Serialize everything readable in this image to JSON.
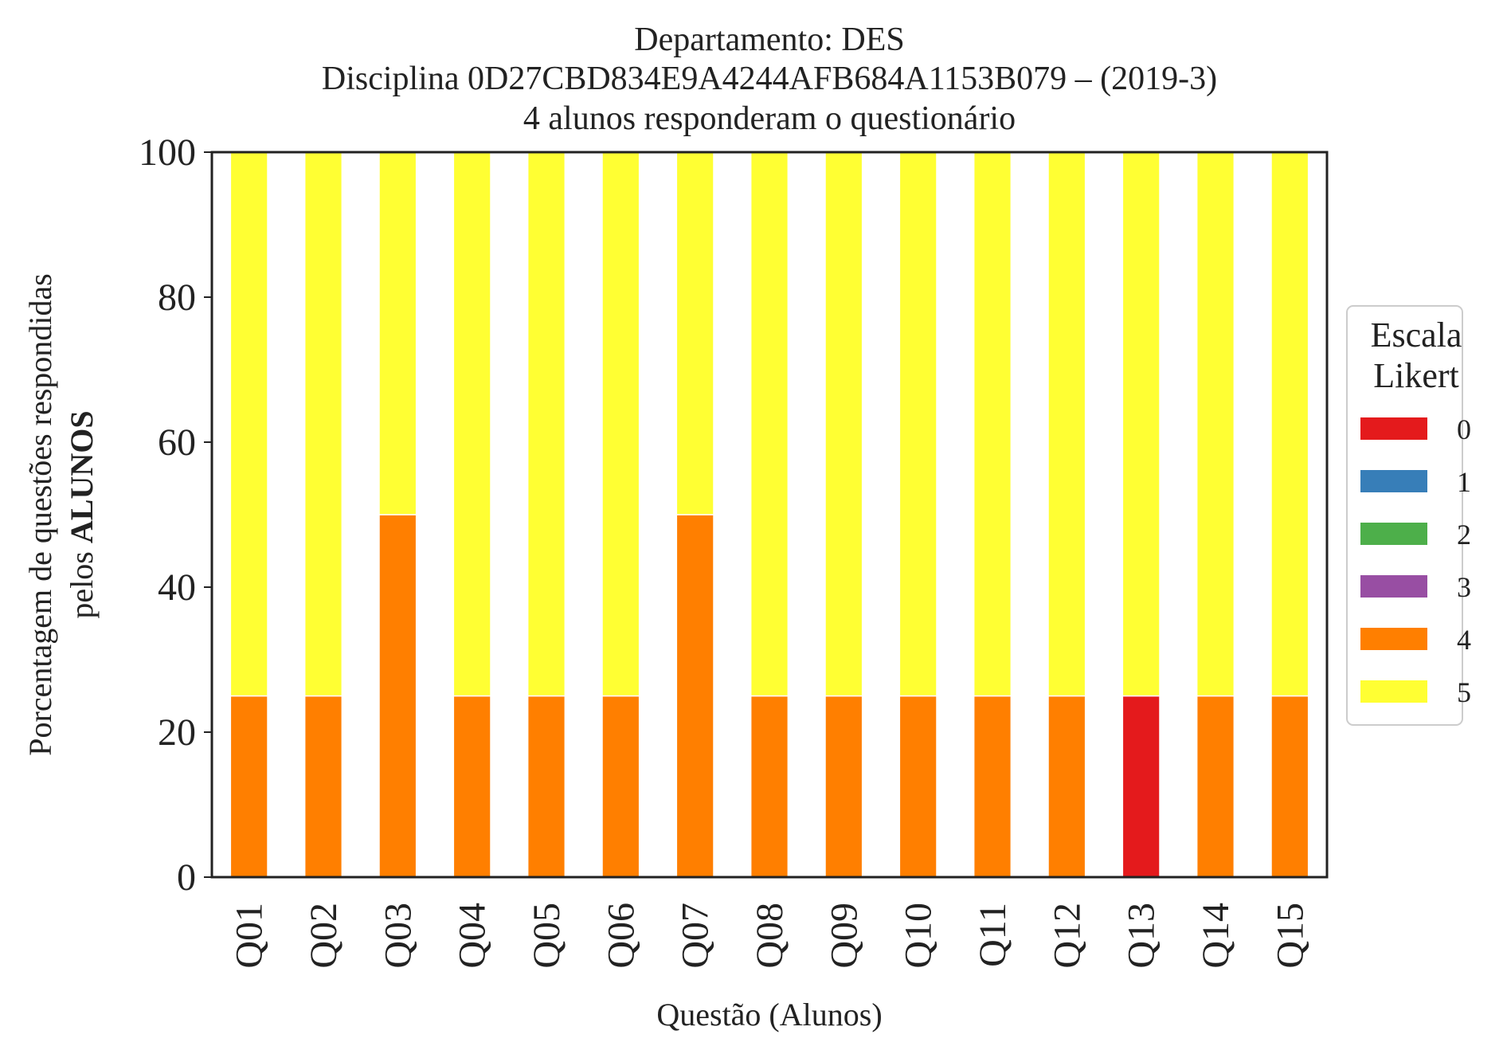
{
  "chart_data": {
    "type": "bar",
    "stacked": true,
    "title_lines": [
      "Departamento: DES",
      "Disciplina 0D27CBD834E9A4244AFB684A1153B079 – (2019-3)",
      "4 alunos responderam o questionário"
    ],
    "xlabel": "Questão (Alunos)",
    "ylabel_line1": "Porcentagem de questões respondidas",
    "ylabel_line2_prefix": "pelos ",
    "ylabel_line2_bold": "ALUNOS",
    "ylim": [
      0,
      100
    ],
    "yticks": [
      0,
      20,
      40,
      60,
      80,
      100
    ],
    "categories": [
      "Q01",
      "Q02",
      "Q03",
      "Q04",
      "Q05",
      "Q06",
      "Q07",
      "Q08",
      "Q09",
      "Q10",
      "Q11",
      "Q12",
      "Q13",
      "Q14",
      "Q15"
    ],
    "legend": {
      "title_lines": [
        "Escala",
        "Likert"
      ],
      "placement": "right-center"
    },
    "series": [
      {
        "name": "0",
        "color": "#e41a1c",
        "values": [
          0,
          0,
          0,
          0,
          0,
          0,
          0,
          0,
          0,
          0,
          0,
          0,
          25,
          0,
          0
        ]
      },
      {
        "name": "1",
        "color": "#377eb8",
        "values": [
          0,
          0,
          0,
          0,
          0,
          0,
          0,
          0,
          0,
          0,
          0,
          0,
          0,
          0,
          0
        ]
      },
      {
        "name": "2",
        "color": "#4daf4a",
        "values": [
          0,
          0,
          0,
          0,
          0,
          0,
          0,
          0,
          0,
          0,
          0,
          0,
          0,
          0,
          0
        ]
      },
      {
        "name": "3",
        "color": "#984ea3",
        "values": [
          0,
          0,
          0,
          0,
          0,
          0,
          0,
          0,
          0,
          0,
          0,
          0,
          0,
          0,
          0
        ]
      },
      {
        "name": "4",
        "color": "#ff7f00",
        "values": [
          25,
          25,
          50,
          25,
          25,
          25,
          50,
          25,
          25,
          25,
          25,
          25,
          0,
          25,
          25
        ]
      },
      {
        "name": "5",
        "color": "#ffff33",
        "values": [
          75,
          75,
          50,
          75,
          75,
          75,
          50,
          75,
          75,
          75,
          75,
          75,
          75,
          75,
          75
        ]
      }
    ],
    "grid": false
  }
}
